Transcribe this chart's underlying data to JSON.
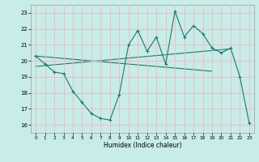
{
  "title": "",
  "xlabel": "Humidex (Indice chaleur)",
  "ylabel": "",
  "background_color": "#c8ece9",
  "grid_color": "#f2b8b8",
  "line_color": "#1a7a6a",
  "x_humidex": [
    0,
    1,
    2,
    3,
    4,
    5,
    6,
    7,
    8,
    9,
    10,
    11,
    12,
    13,
    14,
    15,
    16,
    17,
    18,
    19,
    20,
    21,
    22,
    23
  ],
  "y_curve1": [
    20.3,
    19.8,
    19.3,
    19.2,
    18.1,
    17.4,
    16.7,
    16.4,
    16.3,
    17.9,
    21.0,
    21.9,
    20.6,
    21.5,
    19.8,
    23.1,
    21.5,
    22.2,
    21.7,
    20.8,
    20.5,
    20.8,
    19.0,
    16.1
  ],
  "y_line1_x": [
    0,
    21
  ],
  "y_line1_y": [
    19.65,
    20.75
  ],
  "y_line2_x": [
    0,
    19
  ],
  "y_line2_y": [
    20.3,
    19.35
  ],
  "ylim": [
    15.5,
    23.5
  ],
  "xlim": [
    -0.5,
    23.5
  ],
  "yticks": [
    16,
    17,
    18,
    19,
    20,
    21,
    22,
    23
  ],
  "xticks": [
    0,
    1,
    2,
    3,
    4,
    5,
    6,
    7,
    8,
    9,
    10,
    11,
    12,
    13,
    14,
    15,
    16,
    17,
    18,
    19,
    20,
    21,
    22,
    23
  ]
}
